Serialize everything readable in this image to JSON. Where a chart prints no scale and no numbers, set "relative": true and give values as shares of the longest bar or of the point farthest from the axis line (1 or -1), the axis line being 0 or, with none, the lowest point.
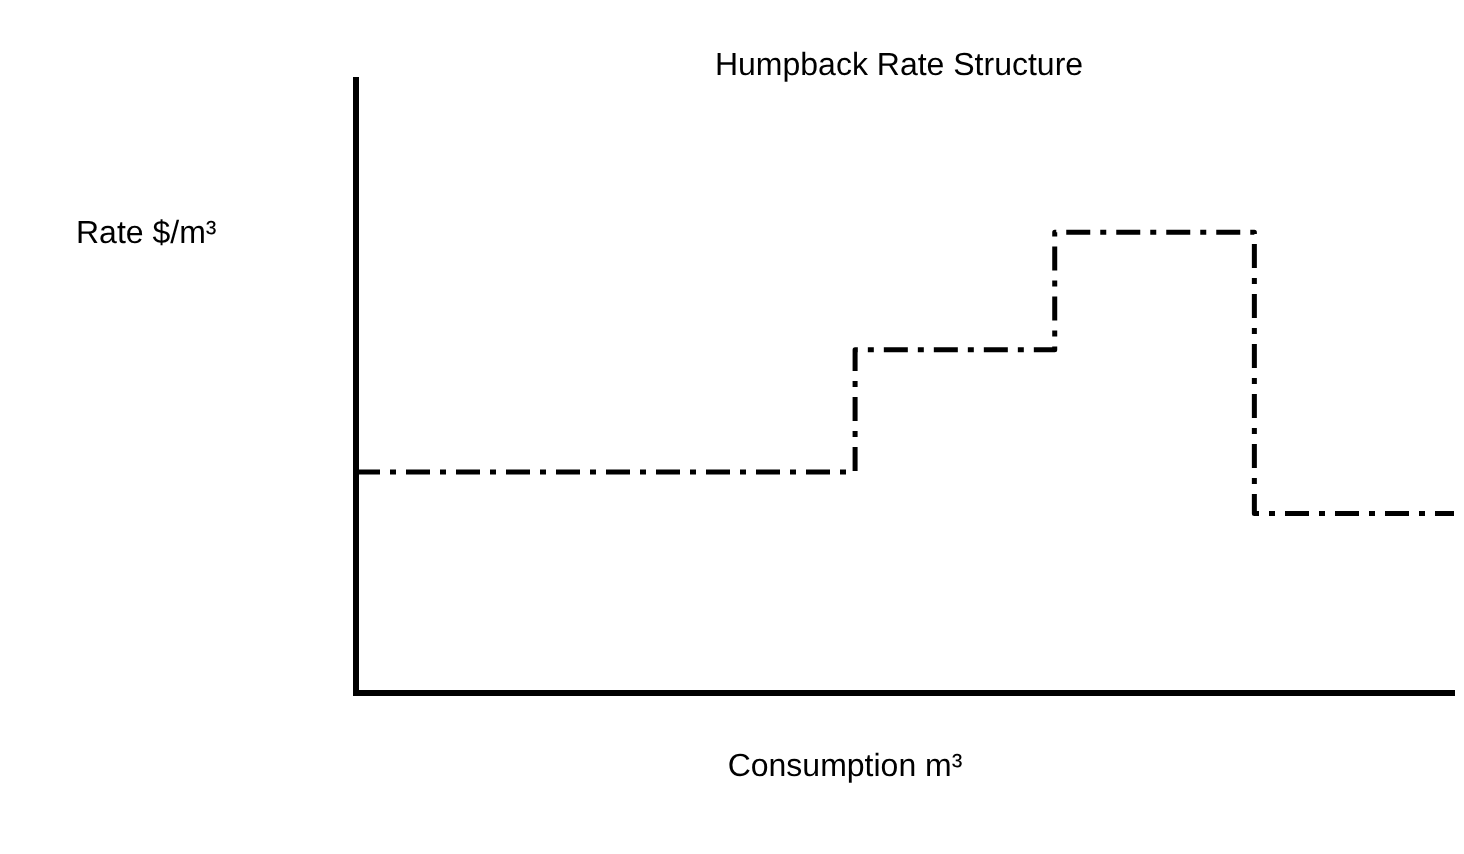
{
  "chart_data": {
    "type": "step",
    "title": "Humpback Rate Structure",
    "xlabel": "Consumption m³",
    "ylabel": "Rate $/m³",
    "relative": true,
    "categories": [
      null,
      null,
      null,
      null,
      null,
      null,
      null,
      null,
      null,
      null,
      null,
      null
    ],
    "series": [
      {
        "color": "#000000",
        "values": [
          0.48,
          0.48,
          0.48,
          0.48,
          0.48,
          0.745,
          0.745,
          1,
          1,
          0.39,
          0.39,
          0.39
        ]
      }
    ],
    "marker": "none",
    "line_style": "dashed"
  }
}
